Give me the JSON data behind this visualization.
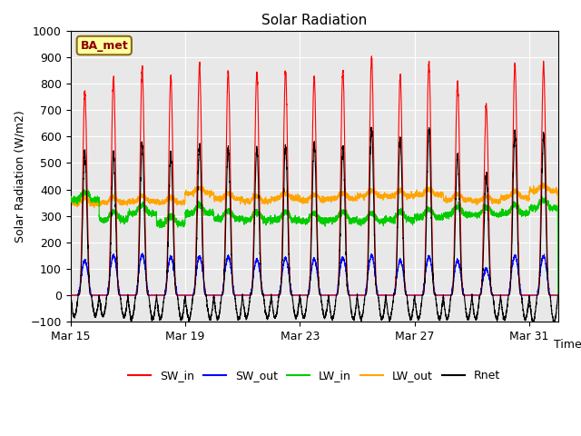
{
  "title": "Solar Radiation",
  "xlabel": "Time",
  "ylabel": "Solar Radiation (W/m2)",
  "ylim": [
    -100,
    1000
  ],
  "yticks": [
    -100,
    0,
    100,
    200,
    300,
    400,
    500,
    600,
    700,
    800,
    900,
    1000
  ],
  "xtick_labels": [
    "Mar 15",
    "Mar 19",
    "Mar 23",
    "Mar 27",
    "Mar 31"
  ],
  "xtick_positions": [
    0,
    4,
    8,
    12,
    16
  ],
  "annotation_text": "BA_met",
  "annotation_color": "#8B0000",
  "annotation_bg": "#FFFFA0",
  "annotation_border": "#8B6914",
  "colors": {
    "SW_in": "#FF0000",
    "SW_out": "#0000FF",
    "LW_in": "#00CC00",
    "LW_out": "#FFA500",
    "Rnet": "#000000"
  },
  "plot_bg": "#E8E8E8",
  "n_days": 17,
  "SW_in_peaks": [
    770,
    825,
    860,
    830,
    875,
    845,
    845,
    845,
    825,
    850,
    900,
    830,
    880,
    808,
    720,
    875,
    870
  ],
  "SW_out_peaks": [
    130,
    150,
    155,
    145,
    145,
    145,
    135,
    140,
    135,
    140,
    150,
    130,
    145,
    130,
    100,
    150,
    148
  ],
  "LW_in_base": [
    360,
    285,
    310,
    270,
    310,
    290,
    285,
    285,
    280,
    285,
    280,
    285,
    295,
    305,
    305,
    310,
    330
  ],
  "LW_out_base": [
    345,
    350,
    355,
    350,
    385,
    365,
    355,
    365,
    360,
    365,
    375,
    375,
    380,
    360,
    355,
    370,
    395
  ],
  "Rnet_peaks": [
    545,
    530,
    570,
    530,
    565,
    555,
    555,
    560,
    575,
    560,
    630,
    595,
    625,
    530,
    450,
    615,
    605
  ],
  "Rnet_night": [
    -80,
    -80,
    -90,
    -90,
    -90,
    -90,
    -85,
    -85,
    -85,
    -90,
    -90,
    -90,
    -90,
    -90,
    -90,
    -90,
    -100
  ],
  "figsize": [
    6.4,
    4.8
  ],
  "dpi": 100,
  "linewidth": 0.8,
  "grid_color": "#FFFFFF",
  "spike_power": 4,
  "day_start": 0.27,
  "day_end": 0.73
}
